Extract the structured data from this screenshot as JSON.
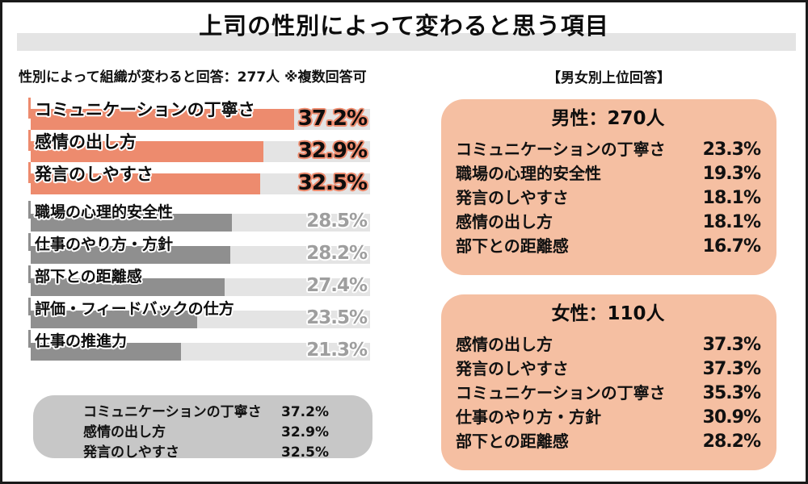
{
  "header": {
    "title": "上司の性別によって変わると思う項目"
  },
  "left": {
    "subtitle": "性別によって組織が変わると回答：277人 ※複数回答可",
    "summary": [
      {
        "label": "コミュニケーションの丁寧さ",
        "value": "37.2%"
      },
      {
        "label": "感情の出し方",
        "value": "32.9%"
      },
      {
        "label": "発言のしやすさ",
        "value": "32.5%"
      }
    ]
  },
  "right": {
    "header": "【男女別上位回答】",
    "cards": [
      {
        "title": "男性：270人",
        "items": [
          {
            "label": "コミュニケーションの丁寧さ",
            "value": "23.3%"
          },
          {
            "label": "職場の心理的安全性",
            "value": "19.3%"
          },
          {
            "label": "発言のしやすさ",
            "value": "18.1%"
          },
          {
            "label": "感情の出し方",
            "value": "18.1%"
          },
          {
            "label": "部下との距離感",
            "value": "16.7%"
          }
        ]
      },
      {
        "title": "女性：110人",
        "items": [
          {
            "label": "感情の出し方",
            "value": "37.3%"
          },
          {
            "label": "発言のしやすさ",
            "value": "37.3%"
          },
          {
            "label": "コミュニケーションの丁寧さ",
            "value": "35.3%"
          },
          {
            "label": "仕事のやり方・方針",
            "value": "30.9%"
          },
          {
            "label": "部下との距離感",
            "value": "28.2%"
          }
        ]
      }
    ]
  },
  "colors": {
    "accent": "#ED8B6E",
    "accent_light": "#F5BFA2",
    "bar_gray": "#8F8F8F",
    "track_gray": "#E4E4E4",
    "band_gray": "#E4E4E4",
    "summary_box_gray": "#C7C7C7",
    "percent_gray": "#9E9E9E",
    "text": "#111111"
  },
  "chart_data": [
    {
      "type": "bar",
      "orientation": "horizontal",
      "title": "上司の性別によって変わると思う項目",
      "subtitle": "性別によって組織が変わると回答：277人 ※複数回答可",
      "note": "※複数回答可",
      "respondents": 277,
      "categories": [
        "コミュニケーションの丁寧さ",
        "感情の出し方",
        "発言のしやすさ",
        "職場の心理的安全性",
        "仕事のやり方・方針",
        "部下との距離感",
        "評価・フィードバックの仕方",
        "仕事の推進力"
      ],
      "values": [
        37.2,
        32.9,
        32.5,
        28.5,
        28.2,
        27.4,
        23.5,
        21.3
      ],
      "unit": "%",
      "xlim": [
        0,
        48
      ],
      "highlight_top_n": 3,
      "grid": false,
      "legend": false
    },
    {
      "type": "table",
      "title": "男性：270人",
      "rows": [
        [
          "コミュニケーションの丁寧さ",
          "23.3%"
        ],
        [
          "職場の心理的安全性",
          "19.3%"
        ],
        [
          "発言のしやすさ",
          "18.1%"
        ],
        [
          "感情の出し方",
          "18.1%"
        ],
        [
          "部下との距離感",
          "16.7%"
        ]
      ]
    },
    {
      "type": "table",
      "title": "女性：110人",
      "rows": [
        [
          "感情の出し方",
          "37.3%"
        ],
        [
          "発言のしやすさ",
          "37.3%"
        ],
        [
          "コミュニケーションの丁寧さ",
          "35.3%"
        ],
        [
          "仕事のやり方・方針",
          "30.9%"
        ],
        [
          "部下との距離感",
          "28.2%"
        ]
      ]
    }
  ]
}
